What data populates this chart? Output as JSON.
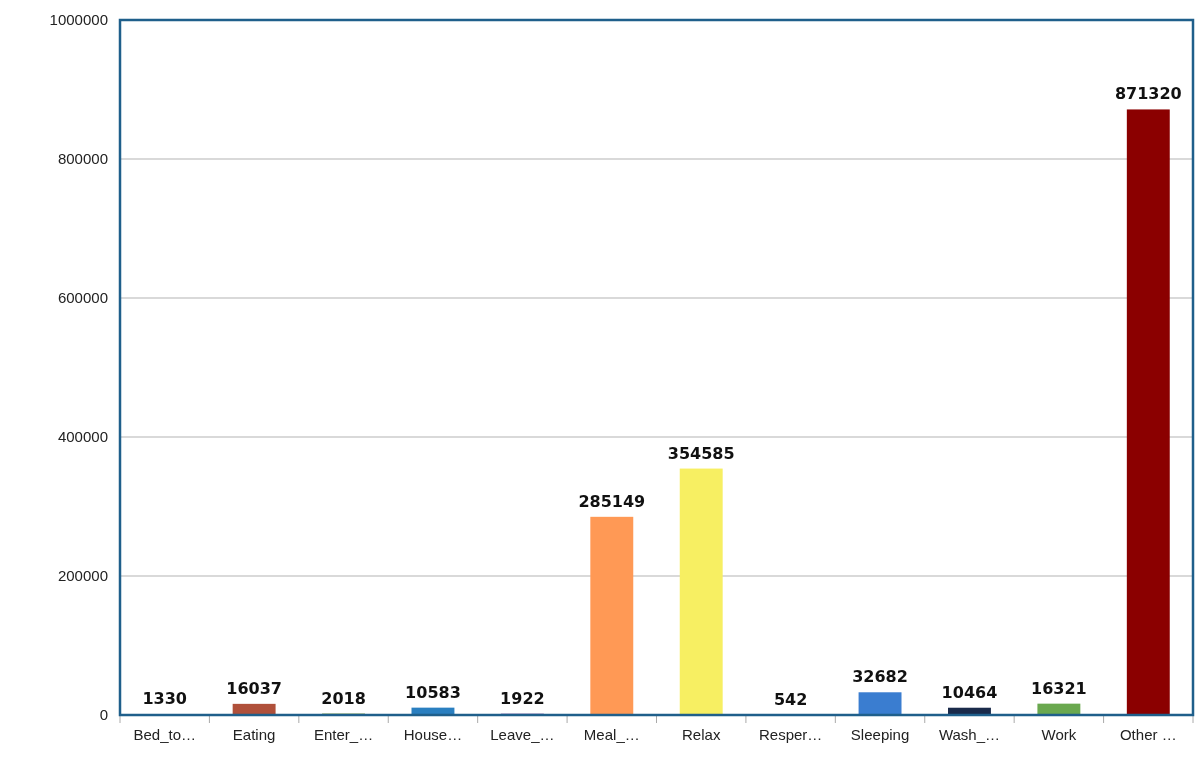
{
  "chart_data": {
    "type": "bar",
    "categories": [
      "Bed_to…",
      "Eating",
      "Enter_…",
      "House…",
      "Leave_…",
      "Meal_…",
      "Relax",
      "Resper…",
      "Sleeping",
      "Wash_…",
      "Work",
      "Other …"
    ],
    "values": [
      1330,
      16037,
      2018,
      10583,
      1922,
      285149,
      354585,
      542,
      32682,
      10464,
      16321,
      871320
    ],
    "colors": [
      "#3465a4",
      "#b0503a",
      "#6b8e23",
      "#2a7fc0",
      "#7a4a9a",
      "#ff9955",
      "#f7ef62",
      "#5a8a3a",
      "#3a7dd0",
      "#1a2a4a",
      "#6aa84f",
      "#8b0000"
    ],
    "ylim": [
      0,
      1000000
    ],
    "yticks": [
      0,
      200000,
      400000,
      600000,
      800000,
      1000000
    ],
    "grid": "y",
    "data_labels": true
  }
}
